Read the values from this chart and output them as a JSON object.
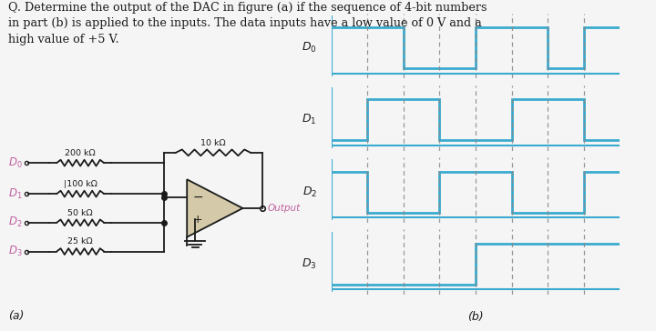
{
  "title_line1": "Q. Determine the output of the DAC in figure (a) if the sequence of 4-bit numbers",
  "title_line2": "in part (b) is applied to the inputs. The data inputs have a low value of 0 V and a",
  "title_line3": "high value of +5 V.",
  "bg_color": "#f5f5f5",
  "waveform_color": "#3aabcf",
  "dashed_color": "#888888",
  "label_color": "#c060a0",
  "black": "#1a1a1a",
  "part_a_label": "(a)",
  "part_b_label": "(b)",
  "res_labels": [
    "200 kΩ",
    "100 kΩ",
    "50 kΩ",
    "25 kΩ",
    "10 kΩ"
  ],
  "D_labels": [
    "D₀",
    "D₁",
    "D₂",
    "D₃"
  ],
  "waveforms": {
    "D0": [
      1,
      1,
      0,
      0,
      1,
      1,
      0,
      1
    ],
    "D1": [
      0,
      1,
      1,
      0,
      0,
      1,
      1,
      0
    ],
    "D2": [
      1,
      0,
      0,
      1,
      1,
      0,
      0,
      1
    ],
    "D3": [
      0,
      0,
      0,
      0,
      1,
      1,
      1,
      1
    ]
  },
  "n_steps": 8,
  "dashed_positions": [
    1,
    2,
    3,
    4,
    5,
    6,
    7
  ],
  "opamp_face": "#d4c9a8",
  "output_label_color": "#c060a0"
}
